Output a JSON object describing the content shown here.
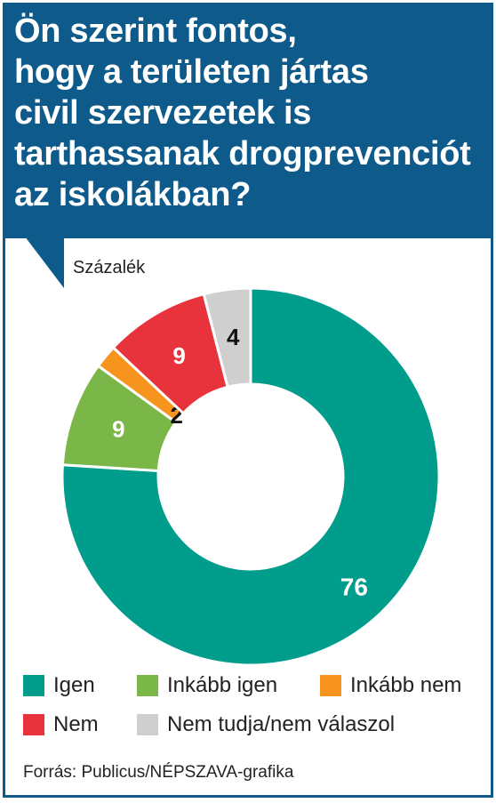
{
  "header": {
    "title_lines": [
      "Ön szerint fontos,",
      "hogy a területen jártas",
      "civil szervezetek is",
      "tarthassanak drogprevenciót",
      "az iskolákban?"
    ]
  },
  "chart_data": {
    "type": "pie",
    "title": "Ön szerint fontos, hogy a területen jártas civil szervezetek is tarthassanak drogprevenciót az iskolákban?",
    "unit_label": "Százalék",
    "categories": [
      "Igen",
      "Inkább igen",
      "Inkább nem",
      "Nem",
      "Nem tudja/nem válaszol"
    ],
    "values": [
      76,
      9,
      2,
      9,
      4
    ],
    "colors": [
      "#009c8c",
      "#7ab648",
      "#f7941d",
      "#e8323c",
      "#cfcfcf"
    ],
    "donut": true,
    "legend_position": "bottom",
    "source": "Forrás: Publicus/NÉPSZAVA-grafika"
  },
  "colors": {
    "header_bg": "#0e5a8a",
    "header_text": "#ffffff"
  }
}
